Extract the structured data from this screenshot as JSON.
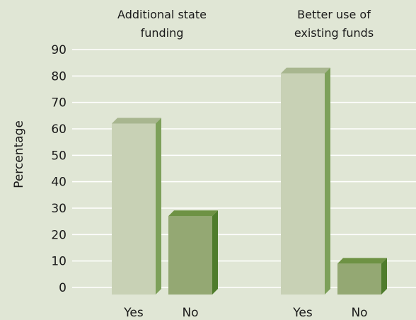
{
  "chart_data": {
    "type": "bar",
    "ylabel": "Percentage",
    "ylim": [
      0,
      90
    ],
    "yticks": [
      0,
      10,
      20,
      30,
      40,
      50,
      60,
      70,
      80,
      90
    ],
    "grid": true,
    "groups": [
      {
        "title_lines": [
          "Additional state",
          "funding"
        ],
        "categories": [
          "Yes",
          "No"
        ],
        "values": [
          62,
          27
        ]
      },
      {
        "title_lines": [
          "Better use of",
          "existing funds"
        ],
        "categories": [
          "Yes",
          "No"
        ],
        "values": [
          81,
          9
        ]
      }
    ],
    "colors": {
      "yes_front": "#c8d1b5",
      "yes_top": "#a8b68f",
      "yes_side": "#7da05a",
      "no_front": "#94a873",
      "no_top": "#6e9244",
      "no_side": "#4f7c2c",
      "grid": "#ffffff"
    }
  }
}
